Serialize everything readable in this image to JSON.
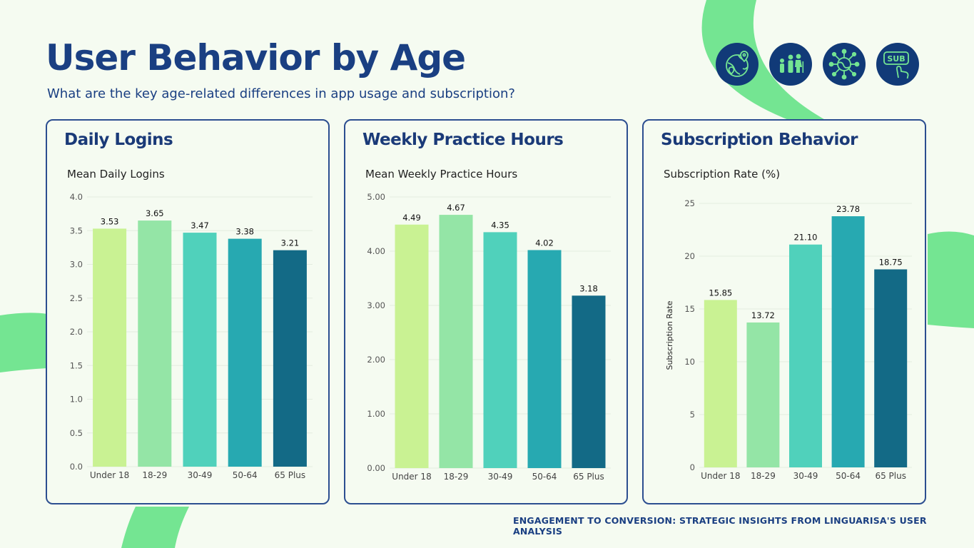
{
  "header": {
    "title": "User Behavior by Age",
    "subtitle": "What are the key age-related differences in app usage and subscription?"
  },
  "icons": [
    "globe-location-icon",
    "family-icon",
    "network-globe-icon",
    "subscribe-click-icon"
  ],
  "icon_labels": {
    "subscribe": "SUB"
  },
  "colors": {
    "title": "#1a3f82",
    "accent_green": "#74e592",
    "icon_bg": "#113a78",
    "bars": [
      "#c9f293",
      "#94e5a6",
      "#50d1bb",
      "#27a9b1",
      "#136a86"
    ]
  },
  "panels": [
    {
      "title": "Daily Logins",
      "subtitle": "Mean Daily Logins"
    },
    {
      "title": "Weekly Practice Hours",
      "subtitle": "Mean Weekly Practice Hours"
    },
    {
      "title": "Subscription Behavior",
      "subtitle": "Subscription Rate (%)"
    }
  ],
  "footer": "ENGAGEMENT TO CONVERSION: STRATEGIC INSIGHTS FROM LINGUARISA'S USER ANALYSIS",
  "chart_data": [
    {
      "type": "bar",
      "title": "Mean Daily Logins",
      "categories": [
        "Under 18",
        "18-29",
        "30-49",
        "50-64",
        "65 Plus"
      ],
      "values": [
        3.53,
        3.65,
        3.47,
        3.38,
        3.21
      ],
      "value_labels": [
        "3.53",
        "3.65",
        "3.47",
        "3.38",
        "3.21"
      ],
      "ylim": [
        0,
        4.0
      ],
      "yticks": [
        "0.0",
        "0.5",
        "1.0",
        "1.5",
        "2.0",
        "2.5",
        "3.0",
        "3.5",
        "4.0"
      ],
      "ylabel": "",
      "grid": true
    },
    {
      "type": "bar",
      "title": "Mean Weekly Practice Hours",
      "categories": [
        "Under 18",
        "18-29",
        "30-49",
        "50-64",
        "65 Plus"
      ],
      "values": [
        4.49,
        4.67,
        4.35,
        4.02,
        3.18
      ],
      "value_labels": [
        "4.49",
        "4.67",
        "4.35",
        "4.02",
        "3.18"
      ],
      "ylim": [
        0,
        5.0
      ],
      "yticks": [
        "0.00",
        "1.00",
        "2.00",
        "3.00",
        "4.00",
        "5.00"
      ],
      "ylabel": "",
      "grid": true
    },
    {
      "type": "bar",
      "title": "Subscription Rate (%)",
      "categories": [
        "Under 18",
        "18-29",
        "30-49",
        "50-64",
        "65 Plus"
      ],
      "values": [
        15.85,
        13.72,
        21.1,
        23.78,
        18.75
      ],
      "value_labels": [
        "15.85",
        "13.72",
        "21.10",
        "23.78",
        "18.75"
      ],
      "ylim": [
        0,
        25
      ],
      "yticks": [
        "0",
        "5",
        "10",
        "15",
        "20",
        "25"
      ],
      "ylabel": "Subscription Rate",
      "grid": true
    }
  ]
}
